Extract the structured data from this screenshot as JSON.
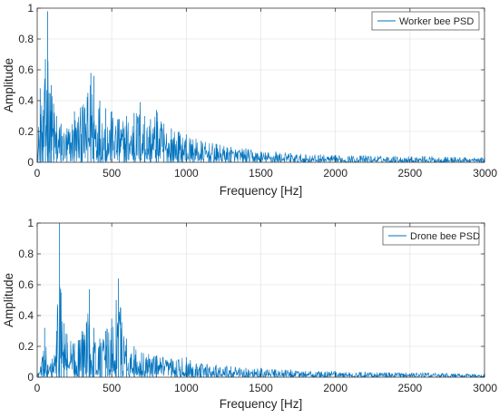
{
  "chart_data": [
    {
      "type": "line",
      "title": "",
      "xlabel": "Frequency [Hz]",
      "ylabel": "Amplitude",
      "xlim": [
        0,
        3000
      ],
      "ylim": [
        0,
        1
      ],
      "xticks": [
        0,
        500,
        1000,
        1500,
        2000,
        2500,
        3000
      ],
      "yticks": [
        0,
        0.2,
        0.4,
        0.6,
        0.8,
        1
      ],
      "xtick_labels": [
        "0",
        "500",
        "1000",
        "1500",
        "2000",
        "2500",
        "3000"
      ],
      "ytick_labels": [
        "0",
        "0.2",
        "0.4",
        "0.6",
        "0.8",
        "1"
      ],
      "grid": true,
      "legend_position": "top-right",
      "line_color": "#0072bd",
      "series": [
        {
          "name": "Worker bee PSD",
          "x": [
            0,
            20,
            40,
            55,
            70,
            80,
            95,
            110,
            130,
            160,
            200,
            250,
            300,
            340,
            360,
            380,
            420,
            460,
            500,
            550,
            600,
            650,
            690,
            720,
            760,
            800,
            850,
            900,
            950,
            1000,
            1100,
            1200,
            1300,
            1400,
            1500,
            1600,
            1700,
            1800,
            1900,
            2000,
            2200,
            2400,
            2600,
            2800,
            3000
          ],
          "y": [
            0.05,
            0.48,
            0.3,
            0.67,
            0.98,
            0.45,
            0.5,
            0.38,
            0.3,
            0.25,
            0.22,
            0.33,
            0.36,
            0.45,
            0.58,
            0.56,
            0.4,
            0.35,
            0.33,
            0.28,
            0.3,
            0.32,
            0.39,
            0.3,
            0.28,
            0.34,
            0.25,
            0.22,
            0.2,
            0.18,
            0.14,
            0.12,
            0.1,
            0.09,
            0.07,
            0.07,
            0.06,
            0.05,
            0.05,
            0.045,
            0.045,
            0.04,
            0.04,
            0.035,
            0.03
          ]
        }
      ]
    },
    {
      "type": "line",
      "title": "",
      "xlabel": "Frequency [Hz]",
      "ylabel": "Amplitude",
      "xlim": [
        0,
        3000
      ],
      "ylim": [
        0,
        1
      ],
      "xticks": [
        0,
        500,
        1000,
        1500,
        2000,
        2500,
        3000
      ],
      "yticks": [
        0,
        0.2,
        0.4,
        0.6,
        0.8,
        1
      ],
      "xtick_labels": [
        "0",
        "500",
        "1000",
        "1500",
        "2000",
        "2500",
        "3000"
      ],
      "ytick_labels": [
        "0",
        "0.2",
        "0.4",
        "0.6",
        "0.8",
        "1"
      ],
      "grid": true,
      "legend_position": "top-right",
      "line_color": "#0072bd",
      "series": [
        {
          "name": "Drone bee PSD",
          "x": [
            0,
            30,
            50,
            70,
            100,
            130,
            150,
            160,
            180,
            200,
            250,
            300,
            330,
            350,
            380,
            420,
            460,
            500,
            530,
            545,
            560,
            600,
            650,
            700,
            800,
            900,
            1000,
            1100,
            1200,
            1300,
            1400,
            1500,
            1600,
            1700,
            1800,
            2000,
            2200,
            2400,
            2600,
            2800,
            3000
          ],
          "y": [
            0.02,
            0.1,
            0.32,
            0.08,
            0.12,
            0.3,
            1.0,
            0.55,
            0.35,
            0.28,
            0.22,
            0.3,
            0.35,
            0.57,
            0.32,
            0.25,
            0.3,
            0.38,
            0.5,
            0.64,
            0.45,
            0.25,
            0.2,
            0.16,
            0.14,
            0.12,
            0.13,
            0.09,
            0.08,
            0.07,
            0.06,
            0.06,
            0.05,
            0.05,
            0.04,
            0.04,
            0.035,
            0.03,
            0.03,
            0.025,
            0.02
          ]
        }
      ]
    }
  ]
}
